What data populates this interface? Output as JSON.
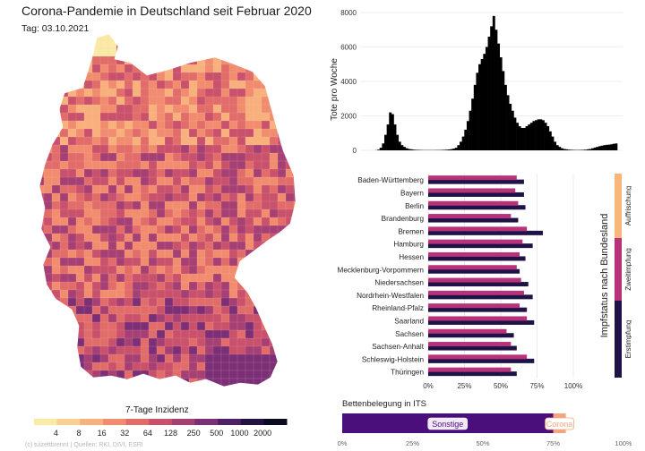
{
  "header": {
    "title": "Corona-Pandemie in Deutschland seit Februar 2020",
    "date_label": "Tag: 03.10.2021"
  },
  "credit": "(c) tulzettbrennt | Quellen: RKI, DIVI, ESRI",
  "colors": {
    "vacc_first": "#1f1246",
    "vacc_second": "#b8327a",
    "vacc_booster": "#f7b67a",
    "icu_other": "#4a0f7a",
    "icu_corona": "#f4a57f",
    "deaths_bars": "#000000"
  },
  "map_legend": {
    "title": "7-Tage Inzidenz",
    "ticks": [
      "4",
      "8",
      "16",
      "32",
      "64",
      "128",
      "250",
      "500",
      "1000",
      "2000"
    ],
    "colors": [
      "#fbe9a6",
      "#fbd08e",
      "#f8b07c",
      "#f28c6e",
      "#e26c69",
      "#c9516c",
      "#a63f73",
      "#7c2f76",
      "#4f1f68",
      "#251244",
      "#0b0a20"
    ]
  },
  "chart_data": [
    {
      "type": "bar",
      "title": "",
      "xlabel": "",
      "ylabel": "Tote pro Woche",
      "ylim": [
        0,
        8000
      ],
      "yticks": [
        "0",
        "2000",
        "4000",
        "6000",
        "8000"
      ],
      "grid": true,
      "description_series": "weekly deaths over time, Feb 2020 to Oct 2021",
      "values": [
        0,
        0,
        0,
        0,
        10,
        40,
        150,
        400,
        900,
        1500,
        2200,
        2100,
        1500,
        900,
        500,
        300,
        200,
        120,
        80,
        60,
        40,
        30,
        25,
        20,
        15,
        15,
        15,
        15,
        15,
        15,
        20,
        20,
        25,
        30,
        40,
        50,
        70,
        100,
        150,
        300,
        500,
        800,
        1200,
        1700,
        2300,
        3000,
        3800,
        4500,
        5000,
        5300,
        5600,
        6000,
        6600,
        7200,
        7800,
        7000,
        6200,
        5400,
        4600,
        3800,
        3200,
        2700,
        2300,
        1900,
        1600,
        1400,
        1300,
        1300,
        1400,
        1500,
        1600,
        1700,
        1750,
        1800,
        1800,
        1750,
        1600,
        1400,
        1100,
        800,
        500,
        300,
        200,
        120,
        80,
        60,
        40,
        30,
        25,
        20,
        20,
        25,
        30,
        40,
        60,
        80,
        120,
        160,
        200,
        240,
        270,
        300,
        320,
        330,
        350,
        380,
        400
      ]
    },
    {
      "type": "bar",
      "orientation": "horizontal",
      "categories": [
        "Baden-Württemberg",
        "Bayern",
        "Berlin",
        "Brandenburg",
        "Bremen",
        "Hamburg",
        "Hessen",
        "Mecklenburg-Vorpommern",
        "Niedersachsen",
        "Nordrhein-Westfalen",
        "Rheinland-Pfalz",
        "Saarland",
        "Sachsen",
        "Sachsen-Anhalt",
        "Schleswig-Holstein",
        "Thüringen"
      ],
      "series": [
        {
          "name": "Erstimpfung",
          "values": [
            66,
            66,
            67,
            62,
            79,
            72,
            67,
            63,
            69,
            72,
            68,
            73,
            59,
            61,
            73,
            61
          ]
        },
        {
          "name": "Zweitimpfung",
          "values": [
            61,
            60,
            62,
            57,
            68,
            65,
            63,
            61,
            64,
            66,
            63,
            68,
            54,
            57,
            68,
            57
          ]
        },
        {
          "name": "Auffrischung",
          "values": [
            0.3,
            0.3,
            0.4,
            0.4,
            0.3,
            0.3,
            0.3,
            0.4,
            0.3,
            0.3,
            0.3,
            0.3,
            0.4,
            0.4,
            0.3,
            0.4
          ]
        }
      ],
      "xlim": [
        0,
        100
      ],
      "xticks": [
        "0%",
        "25%",
        "50%",
        "75%",
        "100%"
      ],
      "legend_title": "Impfstatus nach Bundesland"
    },
    {
      "type": "bar",
      "orientation": "horizontal",
      "stacked": true,
      "title": "Bettenbelegung in ITS",
      "series": [
        {
          "name": "Sonstige",
          "value": 75
        },
        {
          "name": "Corona",
          "value": 4.5
        }
      ],
      "free_fraction_shown": 20.5,
      "xlim": [
        0,
        100
      ],
      "xticks": [
        "0%",
        "25%",
        "50%",
        "75%",
        "100%"
      ]
    }
  ]
}
